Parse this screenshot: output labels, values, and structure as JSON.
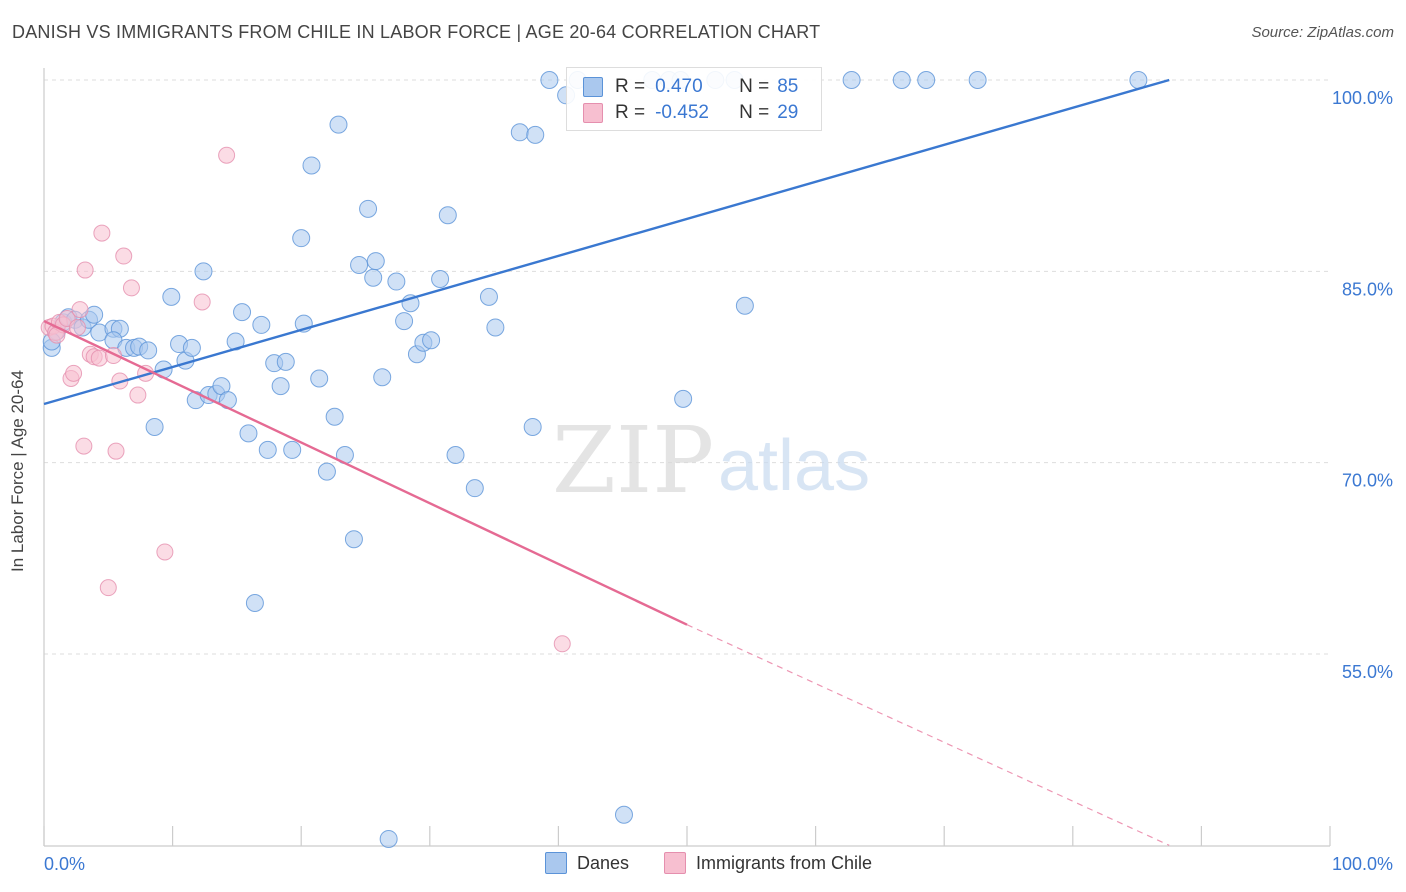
{
  "title": "DANISH VS IMMIGRANTS FROM CHILE IN LABOR FORCE | AGE 20-64 CORRELATION CHART",
  "source": "Source: ZipAtlas.com",
  "watermark": {
    "zip": "ZIP",
    "atlas": "atlas"
  },
  "legend_stats": [
    {
      "r_label": "R =",
      "r_value": "0.470",
      "n_label": "N =",
      "n_value": "85",
      "color": "#aac8ee",
      "edge": "#5b93d8"
    },
    {
      "r_label": "R =",
      "r_value": "-0.452",
      "n_label": "N =",
      "n_value": "29",
      "color": "#f7bfd0",
      "edge": "#e58fae"
    }
  ],
  "bottom_legend": [
    {
      "label": "Danes",
      "color": "#aac8ee",
      "edge": "#5b93d8"
    },
    {
      "label": "Immigrants from Chile",
      "color": "#f7bfd0",
      "edge": "#e58fae"
    }
  ],
  "chart_data": {
    "type": "scatter",
    "title": "DANISH VS IMMIGRANTS FROM CHILE IN LABOR FORCE | AGE 20-64 CORRELATION CHART",
    "xlabel": "",
    "ylabel": "In Labor Force | Age 20-64",
    "xlim": [
      0,
      100
    ],
    "ylim": [
      40,
      101.5
    ],
    "x_tick_labels": [
      {
        "value": 0,
        "label": "0.0%"
      },
      {
        "value": 100,
        "label": "100.0%"
      }
    ],
    "y_tick_labels": [
      {
        "value": 100,
        "label": "100.0%"
      },
      {
        "value": 85,
        "label": "85.0%"
      },
      {
        "value": 70,
        "label": "70.0%"
      },
      {
        "value": 55,
        "label": "55.0%"
      }
    ],
    "grid": true,
    "legend_position": "top-center",
    "series": [
      {
        "name": "Danes",
        "color": "#aac8ee",
        "edge": "#5b93d8",
        "trend": {
          "x": [
            0,
            87.5
          ],
          "y": [
            74.6,
            100
          ]
        },
        "points": [
          [
            0.6,
            79.0
          ],
          [
            1.0,
            80.3
          ],
          [
            1.5,
            81.0
          ],
          [
            1.9,
            81.4
          ],
          [
            2.4,
            81.2
          ],
          [
            3.0,
            80.6
          ],
          [
            3.5,
            81.2
          ],
          [
            3.9,
            81.6
          ],
          [
            4.3,
            80.2
          ],
          [
            5.4,
            80.5
          ],
          [
            5.9,
            80.5
          ],
          [
            5.4,
            79.6
          ],
          [
            6.4,
            79.0
          ],
          [
            7.0,
            79.0
          ],
          [
            7.4,
            79.1
          ],
          [
            8.1,
            78.8
          ],
          [
            8.6,
            72.8
          ],
          [
            9.3,
            77.3
          ],
          [
            9.9,
            83.0
          ],
          [
            10.5,
            79.3
          ],
          [
            11.0,
            78.0
          ],
          [
            11.5,
            79.0
          ],
          [
            11.8,
            74.9
          ],
          [
            12.4,
            85.0
          ],
          [
            12.8,
            75.3
          ],
          [
            13.4,
            75.4
          ],
          [
            13.8,
            76.0
          ],
          [
            14.3,
            74.9
          ],
          [
            14.9,
            79.5
          ],
          [
            15.4,
            81.8
          ],
          [
            15.9,
            72.3
          ],
          [
            16.4,
            59.0
          ],
          [
            16.9,
            80.8
          ],
          [
            17.4,
            71.0
          ],
          [
            17.9,
            77.8
          ],
          [
            18.4,
            76.0
          ],
          [
            18.8,
            77.9
          ],
          [
            19.3,
            71.0
          ],
          [
            20.0,
            87.6
          ],
          [
            20.2,
            80.9
          ],
          [
            20.8,
            93.3
          ],
          [
            21.4,
            76.6
          ],
          [
            22.0,
            69.3
          ],
          [
            22.6,
            73.6
          ],
          [
            22.9,
            96.5
          ],
          [
            23.4,
            70.6
          ],
          [
            24.1,
            64.0
          ],
          [
            24.5,
            85.5
          ],
          [
            25.2,
            89.9
          ],
          [
            25.6,
            84.5
          ],
          [
            25.8,
            85.8
          ],
          [
            26.3,
            76.7
          ],
          [
            26.8,
            40.5
          ],
          [
            27.4,
            84.2
          ],
          [
            28.0,
            81.1
          ],
          [
            28.5,
            82.5
          ],
          [
            29.0,
            78.5
          ],
          [
            29.5,
            79.4
          ],
          [
            30.1,
            79.6
          ],
          [
            30.8,
            84.4
          ],
          [
            31.4,
            89.4
          ],
          [
            32.0,
            70.6
          ],
          [
            33.5,
            68.0
          ],
          [
            34.6,
            83.0
          ],
          [
            35.1,
            80.6
          ],
          [
            37.0,
            95.9
          ],
          [
            38.0,
            72.8
          ],
          [
            38.2,
            95.7
          ],
          [
            39.3,
            100.0
          ],
          [
            40.6,
            98.8
          ],
          [
            41.5,
            100.0
          ],
          [
            45.1,
            42.4
          ],
          [
            47.3,
            100.0
          ],
          [
            48.6,
            100.0
          ],
          [
            49.5,
            100.0
          ],
          [
            52.2,
            100.0
          ],
          [
            53.7,
            100.0
          ],
          [
            49.7,
            75.0
          ],
          [
            54.5,
            82.3
          ],
          [
            62.8,
            100.0
          ],
          [
            66.7,
            100.0
          ],
          [
            68.6,
            100.0
          ],
          [
            72.6,
            100.0
          ],
          [
            85.1,
            100.0
          ],
          [
            0.6,
            79.5
          ]
        ]
      },
      {
        "name": "Immigrants from Chile",
        "color": "#f7bfd0",
        "edge": "#e58fae",
        "trend": {
          "x": [
            0,
            50
          ],
          "y": [
            81.1,
            57.3
          ]
        },
        "trend_dashed": {
          "x": [
            50,
            87.5
          ],
          "y": [
            57.3,
            40.0
          ]
        },
        "points": [
          [
            0.4,
            80.6
          ],
          [
            0.7,
            80.7
          ],
          [
            0.9,
            80.2
          ],
          [
            1.2,
            81.0
          ],
          [
            1.5,
            80.8
          ],
          [
            1.8,
            81.3
          ],
          [
            2.1,
            76.6
          ],
          [
            2.3,
            77.0
          ],
          [
            2.6,
            80.6
          ],
          [
            2.8,
            82.0
          ],
          [
            3.1,
            71.3
          ],
          [
            3.2,
            85.1
          ],
          [
            3.6,
            78.5
          ],
          [
            3.9,
            78.3
          ],
          [
            4.3,
            78.2
          ],
          [
            4.5,
            88.0
          ],
          [
            5.0,
            60.2
          ],
          [
            5.4,
            78.4
          ],
          [
            5.6,
            70.9
          ],
          [
            5.9,
            76.4
          ],
          [
            6.2,
            86.2
          ],
          [
            6.8,
            83.7
          ],
          [
            7.3,
            75.3
          ],
          [
            7.9,
            77.0
          ],
          [
            9.4,
            63.0
          ],
          [
            12.3,
            82.6
          ],
          [
            14.2,
            94.1
          ],
          [
            40.3,
            55.8
          ],
          [
            1.0,
            80.0
          ]
        ]
      }
    ]
  }
}
